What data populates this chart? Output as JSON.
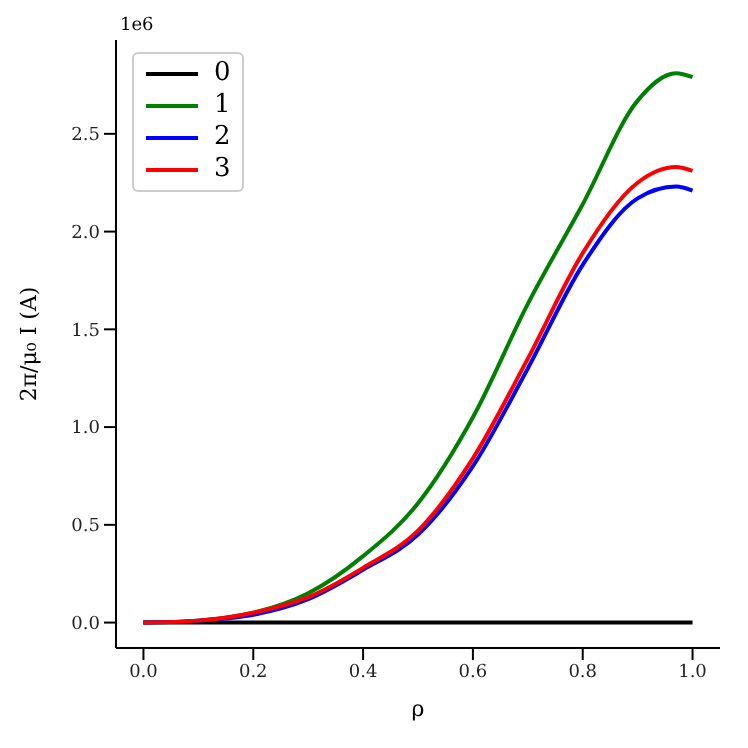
{
  "chart_data": {
    "type": "line",
    "xlabel": "ρ",
    "ylabel": "2π/μ₀ I (A)",
    "annotations": [
      "1e6"
    ],
    "x": [
      0,
      0.1,
      0.2,
      0.3,
      0.4,
      0.5,
      0.6,
      0.7,
      0.8,
      0.9,
      0.97,
      1.0
    ],
    "series": [
      {
        "name": "0",
        "color": "#000000",
        "values": [
          0,
          0,
          0,
          0,
          0,
          0,
          0,
          0,
          0,
          0,
          0,
          0
        ]
      },
      {
        "name": "1",
        "color": "#008000",
        "values": [
          0,
          0.01,
          0.05,
          0.15,
          0.34,
          0.61,
          1.05,
          1.63,
          2.14,
          2.67,
          2.81,
          2.79
        ]
      },
      {
        "name": "2",
        "color": "#0000ff",
        "values": [
          0,
          0.01,
          0.04,
          0.12,
          0.27,
          0.45,
          0.8,
          1.3,
          1.83,
          2.17,
          2.23,
          2.21
        ]
      },
      {
        "name": "3",
        "color": "#ff0000",
        "values": [
          0,
          0.01,
          0.05,
          0.13,
          0.28,
          0.47,
          0.84,
          1.35,
          1.89,
          2.25,
          2.33,
          2.31
        ]
      }
    ],
    "xlim": [
      -0.05,
      1.05
    ],
    "xticks": [
      {
        "value": 0,
        "label": "0.0"
      },
      0.2,
      0.4,
      0.6,
      0.8,
      {
        "value": 1,
        "label": "1.0"
      }
    ],
    "ylim": [
      -0.13,
      2.98
    ],
    "yticks": [
      {
        "value": 0,
        "label": "0.0"
      },
      0.5,
      {
        "value": 1,
        "label": "1.0"
      },
      1.5,
      {
        "value": 2,
        "label": "2.0"
      },
      2.5
    ],
    "grid": false,
    "legend": "top left",
    "marker": "none",
    "line_style": "solid"
  }
}
